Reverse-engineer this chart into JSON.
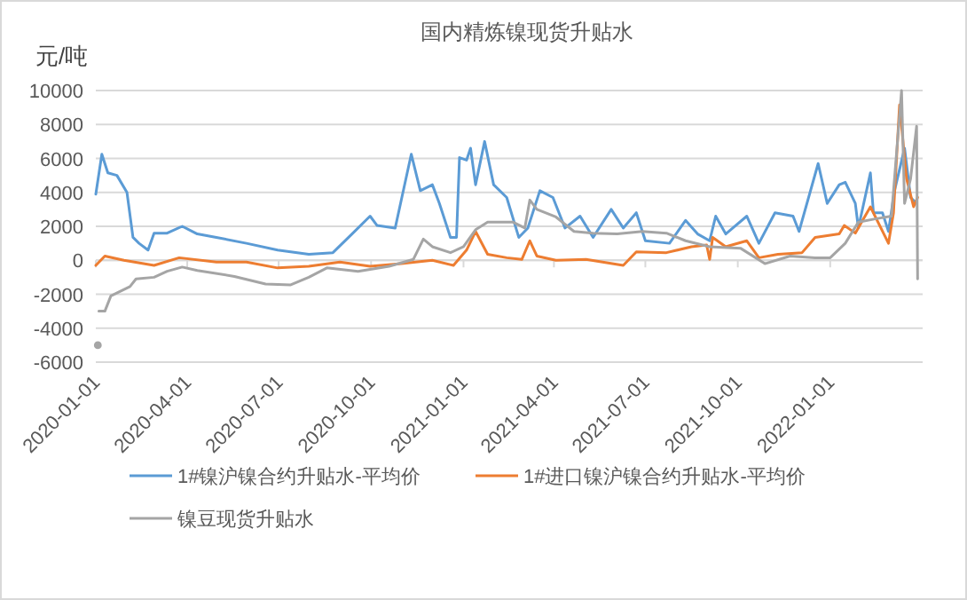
{
  "chart_data": {
    "type": "line",
    "title": "国内精炼镍现货升贴水",
    "ylabel": "元/吨",
    "xlim": [
      "2020-01-01",
      "2022-04-03"
    ],
    "xticks": [
      "2020-01-01",
      "2020-04-01",
      "2020-07-01",
      "2020-10-01",
      "2021-01-01",
      "2021-04-01",
      "2021-07-01",
      "2021-10-01",
      "2022-01-01"
    ],
    "ylim": [
      -6000,
      10000
    ],
    "yticks": [
      -6000,
      -4000,
      -2000,
      0,
      2000,
      4000,
      6000,
      8000,
      10000
    ],
    "grid": "y",
    "legend": "bottom",
    "marker": "none",
    "line_style": "solid",
    "series": [
      {
        "name": "1#镍沪镍合约升贴水-平均价",
        "color": "#5b9bd5",
        "x": [
          "2020-01-01",
          "2020-01-07",
          "2020-01-13",
          "2020-01-22",
          "2020-02-01",
          "2020-02-07",
          "2020-02-13",
          "2020-02-22",
          "2020-02-28",
          "2020-03-12",
          "2020-03-27",
          "2020-04-11",
          "2020-04-30",
          "2020-05-30",
          "2020-06-30",
          "2020-07-31",
          "2020-08-24",
          "2020-09-12",
          "2020-09-30",
          "2020-10-07",
          "2020-10-25",
          "2020-11-10",
          "2020-11-19",
          "2020-12-01",
          "2020-12-08",
          "2020-12-19",
          "2020-12-25",
          "2020-12-28",
          "2021-01-04",
          "2021-01-08",
          "2021-01-13",
          "2021-01-22",
          "2021-01-31",
          "2021-02-13",
          "2021-02-25",
          "2021-03-06",
          "2021-03-18",
          "2021-03-31",
          "2021-04-12",
          "2021-04-27",
          "2021-05-10",
          "2021-05-28",
          "2021-06-09",
          "2021-06-22",
          "2021-07-01",
          "2021-07-25",
          "2021-08-10",
          "2021-08-22",
          "2021-09-03",
          "2021-09-09",
          "2021-09-19",
          "2021-10-10",
          "2021-10-22",
          "2021-11-07",
          "2021-11-25",
          "2021-12-01",
          "2021-12-20",
          "2021-12-29",
          "2022-01-10",
          "2022-01-16",
          "2022-01-26",
          "2022-01-29",
          "2022-02-10",
          "2022-02-13",
          "2022-02-22",
          "2022-02-28",
          "2022-03-06",
          "2022-03-16",
          "2022-03-22",
          "2022-03-28"
        ],
        "values": [
          3900,
          6250,
          5150,
          5000,
          4000,
          1350,
          1000,
          600,
          1600,
          1600,
          2000,
          1550,
          1350,
          1000,
          600,
          350,
          450,
          1550,
          2600,
          2050,
          1900,
          6250,
          4100,
          4450,
          3350,
          1350,
          1350,
          6050,
          5900,
          6600,
          4450,
          7000,
          4450,
          3700,
          1350,
          1900,
          4100,
          3700,
          1900,
          2600,
          1350,
          3000,
          1900,
          2800,
          1150,
          1000,
          2350,
          1550,
          1150,
          2600,
          1550,
          2600,
          1000,
          2800,
          2600,
          1700,
          5700,
          3350,
          4450,
          4600,
          3350,
          1900,
          5150,
          2800,
          2800,
          1700,
          4100,
          6600,
          3700,
          3350
        ]
      },
      {
        "name": "1#进口镍沪镍合约升贴水-平均价",
        "color": "#ed7d31",
        "x": [
          "2020-01-01",
          "2020-01-10",
          "2020-01-29",
          "2020-02-28",
          "2020-03-24",
          "2020-04-30",
          "2020-05-30",
          "2020-06-30",
          "2020-07-31",
          "2020-08-31",
          "2020-09-30",
          "2020-10-31",
          "2020-12-01",
          "2020-12-22",
          "2021-01-04",
          "2021-01-13",
          "2021-01-25",
          "2021-02-13",
          "2021-02-28",
          "2021-03-08",
          "2021-03-15",
          "2021-04-03",
          "2021-05-03",
          "2021-06-09",
          "2021-06-22",
          "2021-07-22",
          "2021-08-16",
          "2021-08-31",
          "2021-09-03",
          "2021-09-06",
          "2021-09-19",
          "2021-10-10",
          "2021-10-22",
          "2021-11-10",
          "2021-12-04",
          "2021-12-17",
          "2022-01-10",
          "2022-01-15",
          "2022-01-26",
          "2022-02-10",
          "2022-02-28",
          "2022-03-05",
          "2022-03-11",
          "2022-03-18",
          "2022-03-25",
          "2022-03-29"
        ],
        "values": [
          -300,
          250,
          0,
          -300,
          150,
          -100,
          -100,
          -450,
          -350,
          -100,
          -350,
          -200,
          0,
          -300,
          600,
          1700,
          350,
          150,
          50,
          1150,
          250,
          0,
          50,
          -300,
          500,
          450,
          800,
          900,
          50,
          1350,
          800,
          1150,
          150,
          350,
          450,
          1350,
          1550,
          2050,
          1600,
          3150,
          1000,
          2800,
          9150,
          4800,
          3150,
          3700
        ]
      },
      {
        "type": "scatter",
        "marker": "circle",
        "color": "#a5a5a5",
        "x": [
          "2020-01-03"
        ],
        "values": [
          -5000
        ]
      },
      {
        "name": "镍豆现货升贴水",
        "color": "#a5a5a5",
        "x": [
          "2020-01-04",
          "2020-01-10",
          "2020-01-16",
          "2020-02-04",
          "2020-02-10",
          "2020-02-28",
          "2020-03-12",
          "2020-03-27",
          "2020-04-11",
          "2020-05-18",
          "2020-06-18",
          "2020-07-13",
          "2020-07-31",
          "2020-08-18",
          "2020-09-18",
          "2020-10-19",
          "2020-11-12",
          "2020-11-22",
          "2020-12-01",
          "2020-12-19",
          "2021-01-01",
          "2021-01-13",
          "2021-01-25",
          "2021-02-19",
          "2021-03-03",
          "2021-03-08",
          "2021-03-15",
          "2021-04-03",
          "2021-04-21",
          "2021-05-10",
          "2021-06-03",
          "2021-06-28",
          "2021-07-22",
          "2021-08-10",
          "2021-09-03",
          "2021-10-04",
          "2021-10-28",
          "2021-11-22",
          "2021-12-17",
          "2022-01-01",
          "2022-01-16",
          "2022-01-29",
          "2022-02-16",
          "2022-03-03",
          "2022-03-13",
          "2022-03-16",
          "2022-03-22",
          "2022-03-28",
          "2022-03-29"
        ],
        "values": [
          -3000,
          -3000,
          -2100,
          -1550,
          -1100,
          -1000,
          -650,
          -400,
          -600,
          -950,
          -1400,
          -1450,
          -1000,
          -450,
          -650,
          -350,
          50,
          1250,
          800,
          450,
          800,
          1800,
          2250,
          2250,
          1900,
          3550,
          3000,
          2550,
          1700,
          1600,
          1550,
          1700,
          1600,
          1150,
          800,
          700,
          -200,
          250,
          150,
          150,
          1000,
          2250,
          2450,
          2600,
          10000,
          3350,
          4800,
          7900,
          -1100
        ]
      }
    ]
  }
}
